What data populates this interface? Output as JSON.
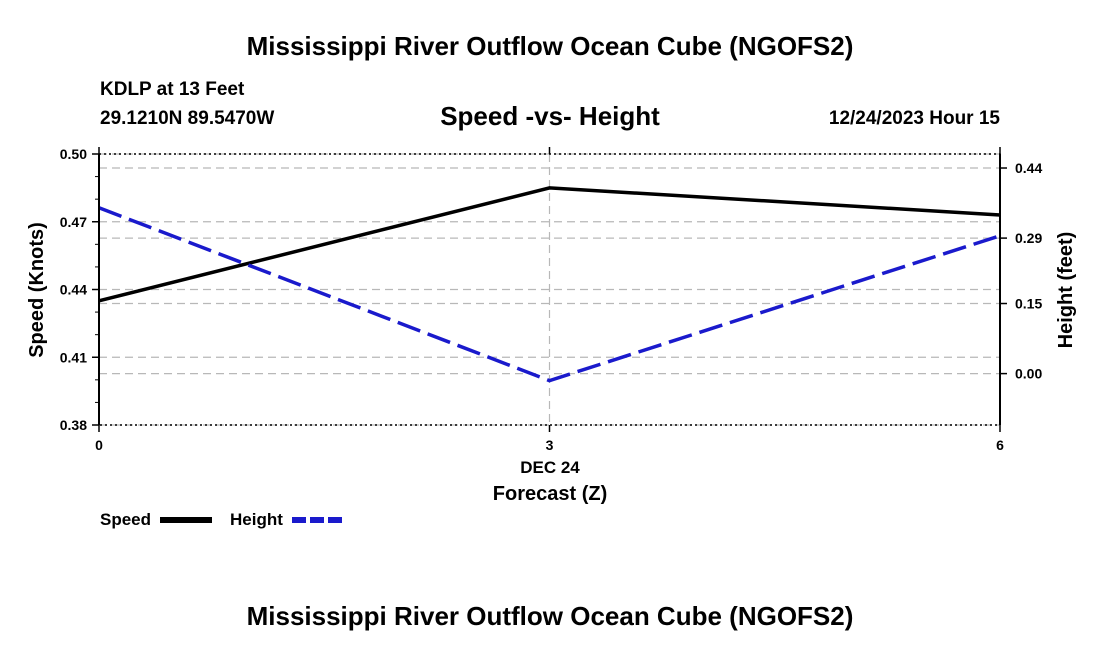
{
  "chart_data": {
    "type": "line",
    "title": "Mississippi River Outflow Ocean Cube (NGOFS2)",
    "footer_title": "Mississippi River Outflow Ocean Cube (NGOFS2)",
    "station": "KDLP at 13 Feet",
    "coordinates": "29.1210N  89.5470W",
    "subtitle": "Speed -vs- Height",
    "date_label": "12/24/2023 Hour 15",
    "xlabel": "Forecast (Z)",
    "date_tick_label": "DEC 24",
    "x": [
      0,
      3,
      6
    ],
    "x_tick_labels": [
      "0",
      "3",
      "6"
    ],
    "xlim": [
      0,
      6
    ],
    "left_axis": {
      "label": "Speed (Knots)",
      "ylim": [
        0.38,
        0.5
      ],
      "ticks": [
        0.38,
        0.41,
        0.44,
        0.47,
        0.5
      ],
      "tick_labels": [
        "0.38",
        "0.41",
        "0.44",
        "0.47",
        "0.50"
      ]
    },
    "right_axis": {
      "label": "Height (feet)",
      "ylim": [
        -0.11,
        0.47
      ],
      "ticks": [
        0.0,
        0.15,
        0.29,
        0.44
      ],
      "tick_labels": [
        "0.00",
        "0.15",
        "0.29",
        "0.44"
      ]
    },
    "series": [
      {
        "name": "Speed",
        "axis": "left",
        "values": [
          0.435,
          0.485,
          0.473
        ],
        "color": "#000000",
        "style": "solid"
      },
      {
        "name": "Height",
        "axis": "right",
        "values": [
          0.355,
          -0.015,
          0.295
        ],
        "color": "#1a1acc",
        "style": "dashed"
      }
    ],
    "legend": [
      {
        "label": "Speed",
        "color": "#000000",
        "style": "solid"
      },
      {
        "label": "Height",
        "color": "#1a1acc",
        "style": "dashed"
      }
    ],
    "grid": true
  }
}
